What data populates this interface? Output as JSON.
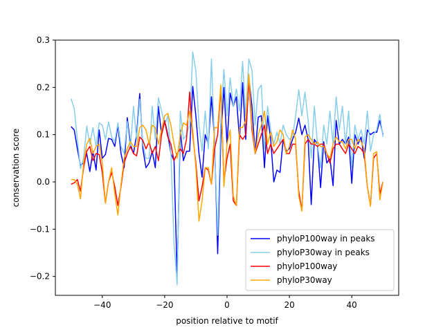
{
  "chart_data": {
    "type": "line",
    "title": "",
    "xlabel": "position relative to motif",
    "ylabel": "conservation score",
    "xlim": [
      -55.05,
      55.05
    ],
    "ylim": [
      -0.24,
      0.3
    ],
    "xticks": [
      -40,
      -20,
      0,
      20,
      40
    ],
    "yticks": [
      -0.2,
      -0.1,
      0.0,
      0.1,
      0.2,
      0.3
    ],
    "ytick_labels": [
      "−0.2",
      "−0.1",
      "0.0",
      "0.1",
      "0.2",
      "0.3"
    ],
    "xtick_labels": [
      "−40",
      "−20",
      "0",
      "20",
      "40"
    ],
    "grid": false,
    "legend_position": "lower-right",
    "series": [
      {
        "name": "phyloP100way in peaks",
        "color": "#0000ff",
        "x": [
          -50,
          -49,
          -48,
          -47,
          -46,
          -45,
          -44,
          -43,
          -42,
          -41,
          -40,
          -39,
          -38,
          -37,
          -36,
          -35,
          -34,
          -33,
          -32,
          -31,
          -30,
          -29,
          -28,
          -27,
          -26,
          -25,
          -24,
          -23,
          -22,
          -21,
          -20,
          -19,
          -18,
          -17,
          -16,
          -15,
          -14,
          -13,
          -12,
          -11,
          -10,
          -9,
          -8,
          -7,
          -6,
          -5,
          -4,
          -3,
          -2,
          -1,
          0,
          1,
          2,
          3,
          4,
          5,
          6,
          7,
          8,
          9,
          10,
          11,
          12,
          13,
          14,
          15,
          16,
          17,
          18,
          19,
          20,
          21,
          22,
          23,
          24,
          25,
          26,
          27,
          28,
          29,
          30,
          31,
          32,
          33,
          34,
          35,
          36,
          37,
          38,
          39,
          40,
          41,
          42,
          43,
          44,
          45,
          46,
          47,
          48,
          49,
          50
        ],
        "values": [
          0.117,
          0.11,
          0.07,
          0.035,
          0.04,
          0.06,
          0.022,
          0.065,
          0.025,
          0.11,
          0.05,
          0.058,
          0.092,
          0.09,
          0.075,
          0.12,
          0.06,
          0.03,
          0.136,
          0.08,
          0.06,
          0.1,
          0.187,
          0.07,
          0.03,
          0.04,
          0.065,
          0.03,
          0.16,
          0.1,
          0.13,
          0.1,
          0.06,
          0.045,
          -0.2,
          0.11,
          0.045,
          0.065,
          0.065,
          0.202,
          0.14,
          0.06,
          0.01,
          0.1,
          0.08,
          0.18,
          0.09,
          -0.152,
          0.09,
          0.2,
          0.08,
          0.188,
          0.16,
          0.18,
          0.09,
          0.21,
          0.09,
          0.22,
          0.16,
          0.06,
          0.137,
          0.14,
          0.03,
          0.14,
          0.09,
          0.0,
          0.025,
          0.02,
          0.09,
          0.065,
          0.07,
          0.09,
          0.105,
          0.135,
          0.1,
          0.12,
          0.09,
          -0.048,
          0.09,
          0.08,
          -0.012,
          0.085,
          0.04,
          0.05,
          -0.008,
          0.13,
          0.08,
          0.09,
          0.08,
          0.095,
          -0.003,
          0.1,
          0.08,
          0.095,
          0.05,
          0.11,
          0.1,
          0.105,
          0.105,
          0.13,
          0.1
        ]
      },
      {
        "name": "phyloP30way in peaks",
        "color": "#87ceeb",
        "x": [
          -50,
          -49,
          -48,
          -47,
          -46,
          -45,
          -44,
          -43,
          -42,
          -41,
          -40,
          -39,
          -38,
          -37,
          -36,
          -35,
          -34,
          -33,
          -32,
          -31,
          -30,
          -29,
          -28,
          -27,
          -26,
          -25,
          -24,
          -23,
          -22,
          -21,
          -20,
          -19,
          -18,
          -17,
          -16,
          -15,
          -14,
          -13,
          -12,
          -11,
          -10,
          -9,
          -8,
          -7,
          -6,
          -5,
          -4,
          -3,
          -2,
          -1,
          0,
          1,
          2,
          3,
          4,
          5,
          6,
          7,
          8,
          9,
          10,
          11,
          12,
          13,
          14,
          15,
          16,
          17,
          18,
          19,
          20,
          21,
          22,
          23,
          24,
          25,
          26,
          27,
          28,
          29,
          30,
          31,
          32,
          33,
          34,
          35,
          36,
          37,
          38,
          39,
          40,
          41,
          42,
          43,
          44,
          45,
          46,
          47,
          48,
          49,
          50
        ],
        "values": [
          0.176,
          0.155,
          0.09,
          0.028,
          0.05,
          0.118,
          0.08,
          0.115,
          0.075,
          0.125,
          0.12,
          0.09,
          0.127,
          0.095,
          0.085,
          0.125,
          0.075,
          0.06,
          0.128,
          0.07,
          0.16,
          0.09,
          0.175,
          0.08,
          0.05,
          0.05,
          0.16,
          0.09,
          0.178,
          0.15,
          0.12,
          0.14,
          0.06,
          -0.13,
          -0.218,
          0.15,
          0.09,
          0.1,
          0.12,
          0.275,
          0.235,
          0.12,
          0.065,
          0.15,
          0.07,
          0.26,
          0.08,
          -0.113,
          0.13,
          0.238,
          0.14,
          0.22,
          0.16,
          0.197,
          0.15,
          0.255,
          0.14,
          0.26,
          0.236,
          0.12,
          0.195,
          0.205,
          0.07,
          0.16,
          0.11,
          0.08,
          0.105,
          0.08,
          0.12,
          0.1,
          0.09,
          0.095,
          0.14,
          0.195,
          0.14,
          0.19,
          0.13,
          0.05,
          0.16,
          0.08,
          0.03,
          0.12,
          0.08,
          0.15,
          0.08,
          0.18,
          0.11,
          0.16,
          0.08,
          0.15,
          0.03,
          0.12,
          0.09,
          0.11,
          0.08,
          0.15,
          0.065,
          0.1,
          0.11,
          0.143,
          0.095
        ]
      },
      {
        "name": "phyloP100way",
        "color": "#ff0000",
        "x": [
          -50,
          -49,
          -48,
          -47,
          -46,
          -45,
          -44,
          -43,
          -42,
          -41,
          -40,
          -39,
          -38,
          -37,
          -36,
          -35,
          -34,
          -33,
          -32,
          -31,
          -30,
          -29,
          -28,
          -27,
          -26,
          -25,
          -24,
          -23,
          -22,
          -21,
          -20,
          -19,
          -18,
          -17,
          -16,
          -15,
          -14,
          -13,
          -12,
          -11,
          -10,
          -9,
          -8,
          -7,
          -6,
          -5,
          -4,
          -3,
          -2,
          -1,
          0,
          1,
          2,
          3,
          4,
          5,
          6,
          7,
          8,
          9,
          10,
          11,
          12,
          13,
          14,
          15,
          16,
          17,
          18,
          19,
          20,
          21,
          22,
          23,
          24,
          25,
          26,
          27,
          28,
          29,
          30,
          31,
          32,
          33,
          34,
          35,
          36,
          37,
          38,
          39,
          40,
          41,
          42,
          43,
          44,
          45,
          46,
          47,
          48,
          49,
          50
        ],
        "values": [
          -0.005,
          -0.002,
          0.005,
          -0.02,
          0.03,
          0.065,
          0.075,
          0.045,
          0.06,
          0.058,
          0.02,
          -0.045,
          0.0,
          0.02,
          -0.01,
          -0.05,
          -0.01,
          0.04,
          0.06,
          0.075,
          0.06,
          0.055,
          0.095,
          0.088,
          0.07,
          0.085,
          0.06,
          0.075,
          0.045,
          0.1,
          0.128,
          0.095,
          0.08,
          0.045,
          0.06,
          0.07,
          0.06,
          0.09,
          0.19,
          0.1,
          0.04,
          -0.04,
          -0.01,
          0.03,
          0.025,
          -0.005,
          0.07,
          0.1,
          0.2,
          0.0,
          0.05,
          0.08,
          -0.04,
          -0.05,
          0.1,
          0.09,
          0.1,
          0.215,
          0.11,
          0.06,
          0.08,
          0.1,
          0.12,
          0.06,
          0.08,
          0.06,
          0.07,
          0.08,
          0.09,
          0.06,
          0.06,
          0.08,
          0.08,
          -0.02,
          -0.06,
          0.08,
          0.09,
          0.08,
          0.08,
          0.075,
          0.08,
          0.08,
          0.06,
          0.04,
          0.07,
          0.08,
          0.08,
          0.07,
          0.06,
          0.08,
          0.07,
          0.06,
          0.075,
          0.07,
          0.06,
          -0.01,
          -0.05,
          0.05,
          0.06,
          -0.025,
          0.0
        ]
      },
      {
        "name": "phyloP30way",
        "color": "#ffa500",
        "x": [
          -50,
          -49,
          -48,
          -47,
          -46,
          -45,
          -44,
          -43,
          -42,
          -41,
          -40,
          -39,
          -38,
          -37,
          -36,
          -35,
          -34,
          -33,
          -32,
          -31,
          -30,
          -29,
          -28,
          -27,
          -26,
          -25,
          -24,
          -23,
          -22,
          -21,
          -20,
          -19,
          -18,
          -17,
          -16,
          -15,
          -14,
          -13,
          -12,
          -11,
          -10,
          -9,
          -8,
          -7,
          -6,
          -5,
          -4,
          -3,
          -2,
          -1,
          0,
          1,
          2,
          3,
          4,
          5,
          6,
          7,
          8,
          9,
          10,
          11,
          12,
          13,
          14,
          15,
          16,
          17,
          18,
          19,
          20,
          21,
          22,
          23,
          24,
          25,
          26,
          27,
          28,
          29,
          30,
          31,
          32,
          33,
          34,
          35,
          36,
          37,
          38,
          39,
          40,
          41,
          42,
          43,
          44,
          45,
          46,
          47,
          48,
          49,
          50
        ],
        "values": [
          0.005,
          0.005,
          -0.005,
          -0.036,
          0.04,
          0.08,
          0.092,
          0.06,
          0.075,
          0.08,
          0.04,
          -0.045,
          0.0,
          0.03,
          -0.025,
          -0.07,
          -0.005,
          0.05,
          0.07,
          0.085,
          0.075,
          0.075,
          0.115,
          0.12,
          0.11,
          0.08,
          0.12,
          0.115,
          0.08,
          0.11,
          0.14,
          0.145,
          0.12,
          0.08,
          0.05,
          0.1,
          0.125,
          0.12,
          0.15,
          0.11,
          0.03,
          -0.083,
          -0.04,
          0.03,
          0.03,
          -0.005,
          0.115,
          0.115,
          0.205,
          -0.01,
          0.08,
          0.11,
          -0.03,
          -0.05,
          0.115,
          0.115,
          0.13,
          0.228,
          0.12,
          0.06,
          0.1,
          0.12,
          0.15,
          0.08,
          0.105,
          0.075,
          0.085,
          0.11,
          0.1,
          0.06,
          0.075,
          0.11,
          0.09,
          -0.03,
          -0.062,
          0.095,
          0.1,
          0.09,
          0.08,
          0.085,
          0.075,
          0.075,
          0.06,
          0.05,
          0.08,
          0.095,
          0.085,
          0.085,
          0.07,
          0.09,
          0.09,
          0.07,
          0.09,
          0.085,
          0.07,
          -0.01,
          -0.052,
          0.06,
          0.064,
          -0.038,
          0.0
        ]
      }
    ]
  }
}
